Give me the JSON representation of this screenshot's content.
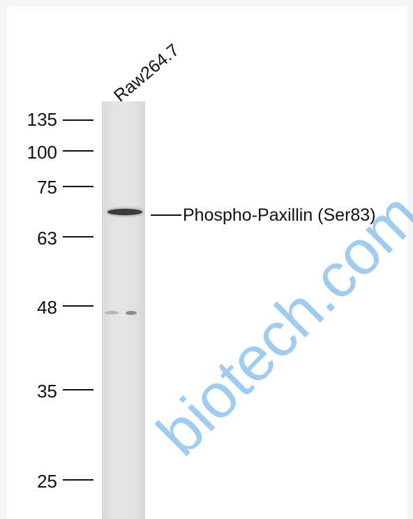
{
  "lane_label": "Raw264.7",
  "band_label": "Phospho-Paxillin (Ser83)",
  "markers": [
    "135",
    "100",
    "75",
    "63",
    "48",
    "35",
    "25"
  ],
  "watermark_text": "biotech.com"
}
